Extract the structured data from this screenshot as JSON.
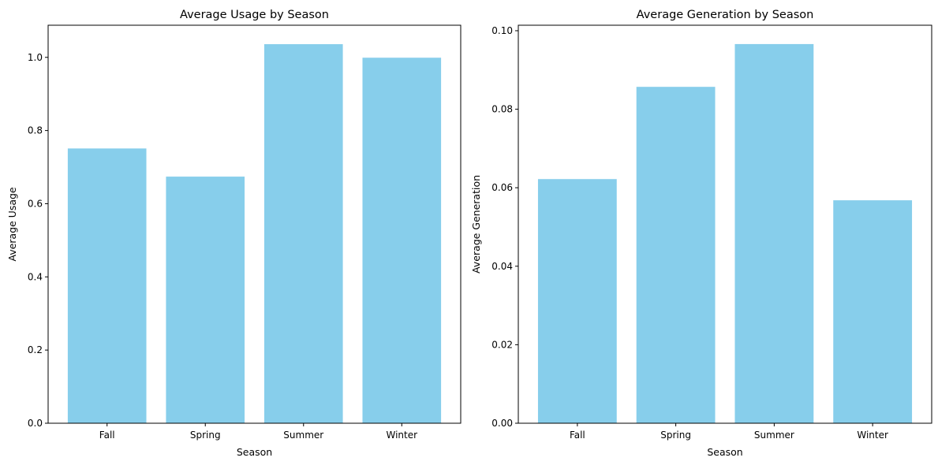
{
  "chart_data": [
    {
      "type": "bar",
      "title": "Average Usage by Season",
      "xlabel": "Season",
      "ylabel": "Average Usage",
      "categories": [
        "Fall",
        "Spring",
        "Summer",
        "Winter"
      ],
      "values": [
        0.751,
        0.674,
        1.036,
        0.999
      ],
      "ylim": [
        0,
        1.0878
      ],
      "yticks": [
        "0.0",
        "0.2",
        "0.4",
        "0.6",
        "0.8",
        "1.0"
      ],
      "bar_color": "#87CEEB",
      "grid": false,
      "legend": "none"
    },
    {
      "type": "bar",
      "title": "Average Generation by Season",
      "xlabel": "Season",
      "ylabel": "Average Generation",
      "categories": [
        "Fall",
        "Spring",
        "Summer",
        "Winter"
      ],
      "values": [
        0.0622,
        0.0857,
        0.0966,
        0.0568
      ],
      "ylim": [
        0,
        0.1014
      ],
      "yticks": [
        "0.00",
        "0.02",
        "0.04",
        "0.06",
        "0.08",
        "0.10"
      ],
      "bar_color": "#87CEEB",
      "grid": false,
      "legend": "none"
    }
  ]
}
